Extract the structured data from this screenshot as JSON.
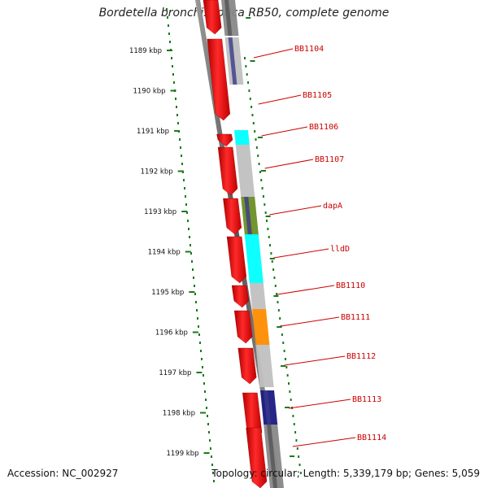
{
  "title": "Bordetella bronchiseptica RB50, complete genome",
  "footer": {
    "accession": "Accession: NC_002927",
    "stats": "Topology: circular; Length: 5,339,179 bp; Genes: 5,059"
  },
  "axis": {
    "ticks": [
      "1189 kbp",
      "1190 kbp",
      "1191 kbp",
      "1192 kbp",
      "1193 kbp",
      "1194 kbp",
      "1195 kbp",
      "1196 kbp",
      "1197 kbp",
      "1198 kbp",
      "1199 kbp"
    ]
  },
  "colors": {
    "cds_forward": "#ff1a1a",
    "cds_reverse_plain": "#c0c0c0",
    "cog_cyan": "#00ffff",
    "cog_orange": "#ff8c00",
    "cog_olive": "#6b8e23",
    "cog_navy": "#1a1a80",
    "label_red": "#cc0000",
    "tick_green": "#006400",
    "backbone": "#707070"
  },
  "genes": [
    {
      "name": "BB1104",
      "strand": "reverse",
      "color": "#888888"
    },
    {
      "name": "BB1105",
      "strand": "reverse",
      "color": "#c0c0c0"
    },
    {
      "name": "BB1106",
      "strand": "reverse",
      "color": "#00ffff"
    },
    {
      "name": "BB1107",
      "strand": "reverse",
      "color": "#c0c0c0"
    },
    {
      "name": "dapA",
      "strand": "reverse",
      "color": "#6b8e23"
    },
    {
      "name": "lldD",
      "strand": "reverse",
      "color": "#00ffff"
    },
    {
      "name": "BB1110",
      "strand": "reverse",
      "color": "#c0c0c0"
    },
    {
      "name": "BB1111",
      "strand": "reverse",
      "color": "#ff8c00"
    },
    {
      "name": "BB1112",
      "strand": "reverse",
      "color": "#c0c0c0"
    },
    {
      "name": "BB1113",
      "strand": "reverse",
      "color": "#1a1a80"
    },
    {
      "name": "BB1114",
      "strand": "reverse",
      "color": "#888888"
    }
  ]
}
